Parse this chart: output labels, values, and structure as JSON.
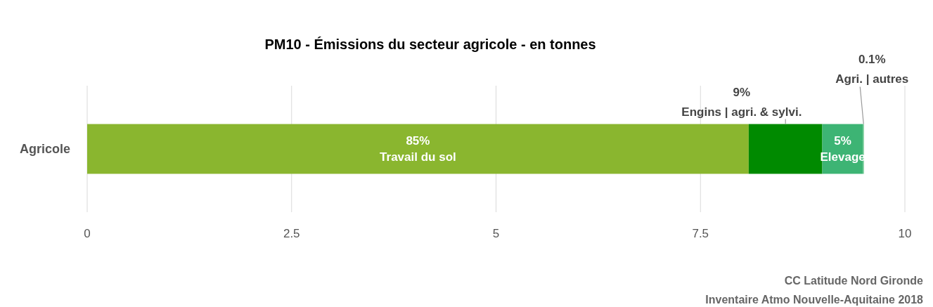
{
  "chart_data": {
    "type": "bar",
    "orientation": "horizontal",
    "stacked": true,
    "title": "PM10 - Émissions du secteur agricole - en tonnes",
    "categories": [
      "Agricole"
    ],
    "series": [
      {
        "name": "Travail du sol",
        "color": "#8ab62f",
        "values": [
          8.09
        ]
      },
      {
        "name": "Engins | agri. & sylvi.",
        "color": "#008a00",
        "values": [
          0.9
        ]
      },
      {
        "name": "Elevage",
        "color": "#3db474",
        "values": [
          0.5
        ]
      },
      {
        "name": "Agri. | autres",
        "color": "#7fcf9c",
        "values": [
          0.01
        ]
      }
    ],
    "xlim": [
      0,
      10
    ],
    "xticks": [
      0,
      2.5,
      5,
      7.5,
      10
    ],
    "grid": "x",
    "legend": false,
    "annotations": [
      "85%",
      "9%",
      "5%",
      "0.1%",
      "CC Latitude Nord Gironde",
      "Inventaire Atmo Nouvelle-Aquitaine 2018"
    ]
  }
}
